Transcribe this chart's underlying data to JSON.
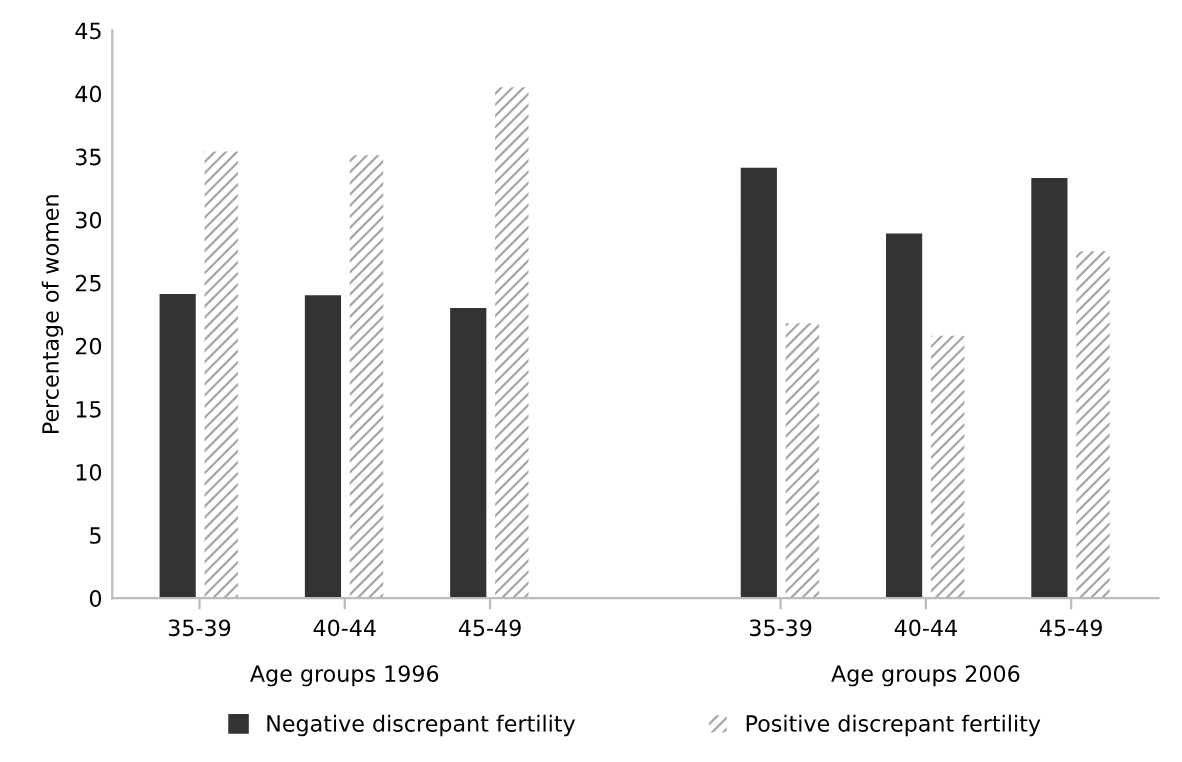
{
  "chart_data": {
    "type": "bar",
    "ylabel": "Percentage of women",
    "categories": [
      "35-39",
      "40-44",
      "45-49",
      null,
      "35-39",
      "40-44",
      "45-49"
    ],
    "series": [
      {
        "name": "Negative discrepant fertility",
        "color": "#333333",
        "values": [
          24.0,
          23.9,
          22.9,
          null,
          34.0,
          28.8,
          33.2
        ]
      },
      {
        "name": "Positive discrepant fertility",
        "color": "#a6a6a6",
        "values": [
          35.4,
          35.1,
          40.5,
          null,
          21.8,
          20.8,
          27.5
        ]
      }
    ],
    "ylim": [
      0,
      45
    ],
    "yticks": [
      0,
      5,
      10,
      15,
      20,
      25,
      30,
      35,
      40,
      45
    ],
    "annotations": [
      "Age groups 1996",
      "Age groups 2006"
    ],
    "grid": false,
    "legend": "bottom"
  }
}
